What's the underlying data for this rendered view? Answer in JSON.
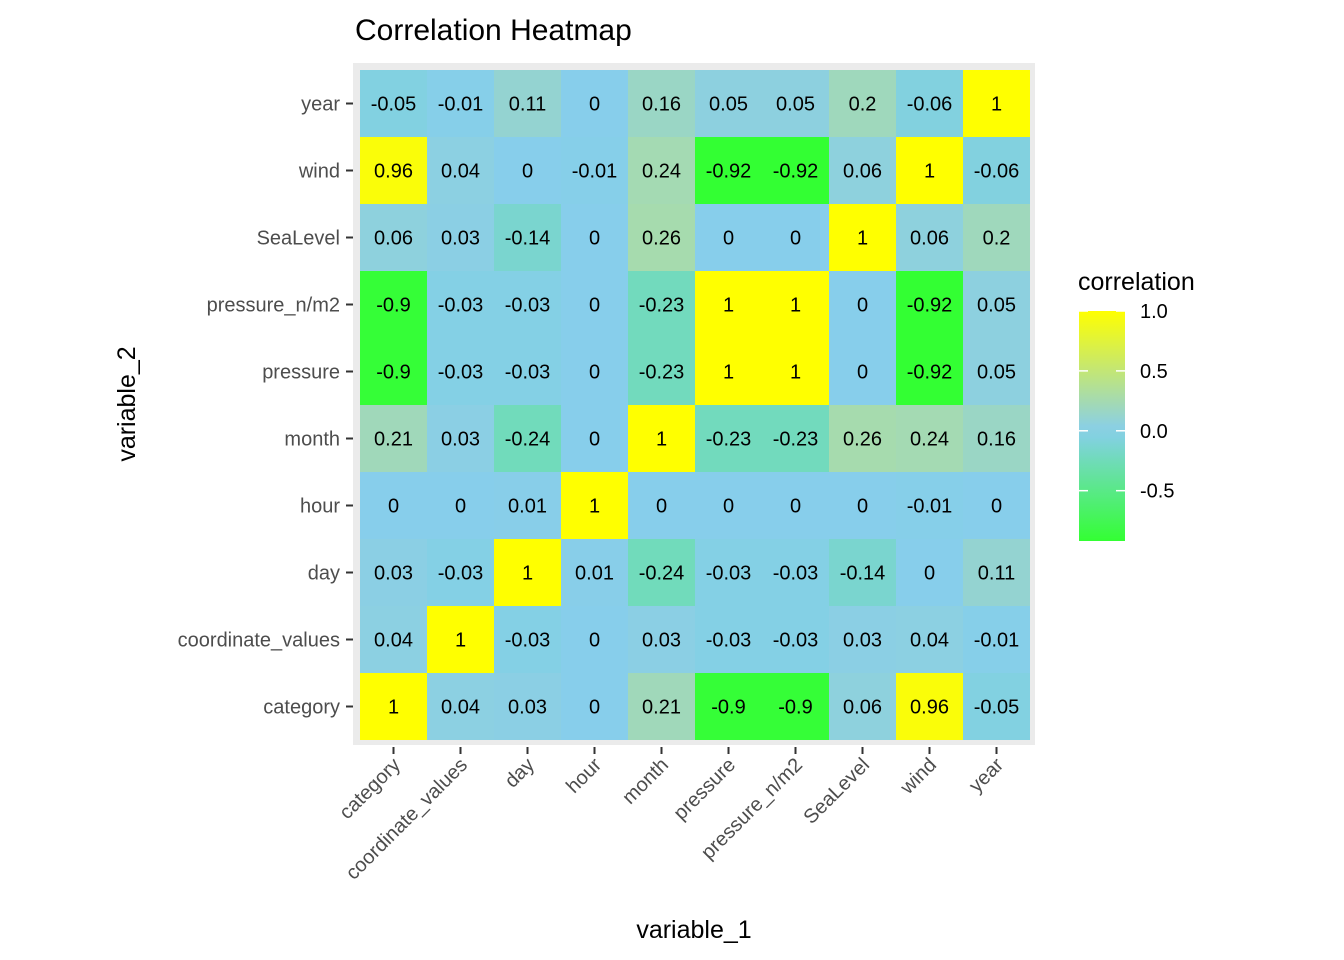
{
  "chart_data": {
    "type": "heatmap",
    "title": "Correlation Heatmap",
    "xlabel": "variable_1",
    "ylabel": "variable_2",
    "x_categories": [
      "category",
      "coordinate_values",
      "day",
      "hour",
      "month",
      "pressure",
      "pressure_n/m2",
      "SeaLevel",
      "wind",
      "year"
    ],
    "y_categories": [
      "category",
      "coordinate_values",
      "day",
      "hour",
      "month",
      "pressure",
      "pressure_n/m2",
      "SeaLevel",
      "wind",
      "year"
    ],
    "matrix": [
      [
        1,
        0.04,
        0.03,
        0,
        0.21,
        -0.9,
        -0.9,
        0.06,
        0.96,
        -0.05
      ],
      [
        0.04,
        1,
        -0.03,
        0,
        0.03,
        -0.03,
        -0.03,
        0.03,
        0.04,
        -0.01
      ],
      [
        0.03,
        -0.03,
        1,
        0.01,
        -0.24,
        -0.03,
        -0.03,
        -0.14,
        0,
        0.11
      ],
      [
        0,
        0,
        0.01,
        1,
        0,
        0,
        0,
        0,
        -0.01,
        0
      ],
      [
        0.21,
        0.03,
        -0.24,
        0,
        1,
        -0.23,
        -0.23,
        0.26,
        0.24,
        0.16
      ],
      [
        -0.9,
        -0.03,
        -0.03,
        0,
        -0.23,
        1,
        1,
        0,
        -0.92,
        0.05
      ],
      [
        -0.9,
        -0.03,
        -0.03,
        0,
        -0.23,
        1,
        1,
        0,
        -0.92,
        0.05
      ],
      [
        0.06,
        0.03,
        -0.14,
        0,
        0.26,
        0,
        0,
        1,
        0.06,
        0.2
      ],
      [
        0.96,
        0.04,
        0,
        -0.01,
        0.24,
        -0.92,
        -0.92,
        0.06,
        1,
        -0.06
      ],
      [
        -0.05,
        -0.01,
        0.11,
        0,
        0.16,
        0.05,
        0.05,
        0.2,
        -0.06,
        1
      ]
    ],
    "color_scale": {
      "low": "#33ff33",
      "mid": "#87ceeb",
      "high": "#ffff00",
      "midpoint": 0,
      "range": [
        -0.92,
        1
      ]
    },
    "legend": {
      "title": "correlation",
      "ticks": [
        {
          "value": 1.0,
          "label": "1.0"
        },
        {
          "value": 0.5,
          "label": "0.5"
        },
        {
          "value": 0.0,
          "label": "0.0"
        },
        {
          "value": -0.5,
          "label": "-0.5"
        }
      ],
      "placement": "right"
    },
    "panel_background": "#ebebeb"
  }
}
